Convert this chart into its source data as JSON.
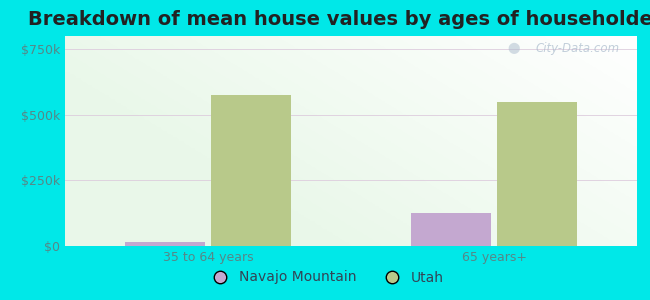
{
  "title": "Breakdown of mean house values by ages of householders",
  "categories": [
    "35 to 64 years",
    "65 years+"
  ],
  "series": {
    "Navajo Mountain": [
      15000,
      125000
    ],
    "Utah": [
      575000,
      548000
    ]
  },
  "bar_colors": {
    "Navajo Mountain": "#c4a8d0",
    "Utah": "#b8c98a"
  },
  "ylim": [
    0,
    800000
  ],
  "yticks": [
    0,
    250000,
    500000,
    750000
  ],
  "ytick_labels": [
    "$0",
    "$250k",
    "$500k",
    "$750k"
  ],
  "background_color": "#00e8e8",
  "title_fontsize": 14,
  "tick_fontsize": 9,
  "legend_fontsize": 10,
  "bar_width": 0.28,
  "watermark": "City-Data.com"
}
